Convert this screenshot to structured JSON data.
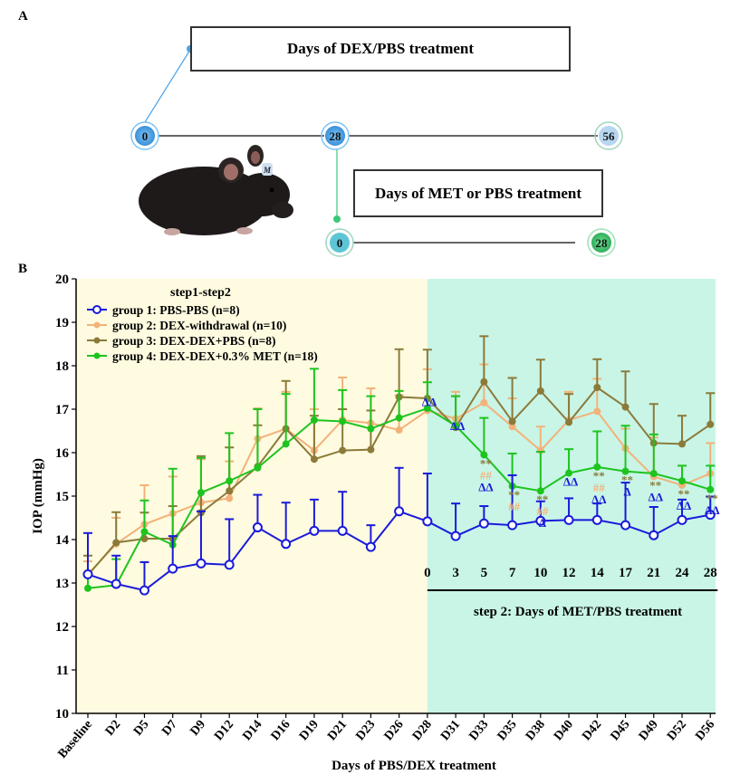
{
  "panel_a": {
    "letter": "A",
    "dex_box_label": "Days of DEX/PBS treatment",
    "met_box_label": "Days of MET or PBS treatment",
    "timeline1_nodes": [
      "0",
      "28",
      "56"
    ],
    "timeline2_nodes": [
      "0",
      "28"
    ],
    "mouse_tag": "M"
  },
  "panel_b": {
    "letter": "B",
    "step2_label": "step 2: Days of MET/PBS treatment",
    "step2_days": [
      "0",
      "3",
      "5",
      "7",
      "10",
      "12",
      "14",
      "17",
      "21",
      "24",
      "28"
    ]
  },
  "colors": {
    "g1": "#1a1adb",
    "g2": "#f2b27a",
    "g3": "#8b7a3a",
    "g4": "#1ec41e",
    "bg_step1": "#fffbe0",
    "bg_step2": "#c8f5e6",
    "node_blue": "#4aa3e8",
    "node_green": "#3cc87a"
  },
  "chart_data": {
    "type": "line",
    "legend_title": "step1-step2",
    "legend_position": "top-left",
    "xlabel": "Days of PBS/DEX treatment",
    "ylabel": "IOP (mmHg)",
    "ylim": [
      10,
      20
    ],
    "yticks": [
      10,
      11,
      12,
      13,
      14,
      15,
      16,
      17,
      18,
      19,
      20
    ],
    "categories": [
      "Baseline",
      "D2",
      "D5",
      "D7",
      "D9",
      "D12",
      "D14",
      "D16",
      "D19",
      "D21",
      "D23",
      "D26",
      "D28",
      "D31",
      "D33",
      "D35",
      "D38",
      "D40",
      "D42",
      "D45",
      "D49",
      "D52",
      "D56"
    ],
    "series": [
      {
        "name": "group 1: PBS-PBS (n=8)",
        "color": "#1a1adb",
        "marker": "open-circle",
        "values": [
          13.2,
          12.98,
          12.83,
          13.33,
          13.45,
          13.42,
          14.28,
          13.9,
          14.2,
          14.2,
          13.83,
          14.65,
          14.42,
          14.08,
          14.37,
          14.33,
          14.43,
          14.45,
          14.45,
          14.33,
          14.1,
          14.45,
          14.57
        ],
        "errors": [
          0.95,
          0.65,
          0.65,
          0.75,
          1.2,
          1.05,
          0.75,
          0.95,
          0.72,
          0.9,
          0.5,
          1.0,
          1.1,
          0.75,
          0.4,
          1.15,
          0.45,
          0.5,
          0.38,
          0.98,
          0.65,
          0.47,
          0.42
        ]
      },
      {
        "name": "group 2: DEX-withdrawal (n=10)",
        "color": "#f2b27a",
        "marker": "circle",
        "values": [
          13.2,
          13.9,
          14.35,
          14.6,
          14.85,
          14.95,
          16.32,
          16.55,
          16.05,
          16.75,
          16.68,
          16.52,
          16.97,
          16.78,
          17.15,
          16.6,
          16.05,
          16.75,
          16.95,
          16.1,
          15.45,
          15.25,
          15.52
        ],
        "errors": [
          0.3,
          0.6,
          0.9,
          0.85,
          1.0,
          0.85,
          0.7,
          0.85,
          0.95,
          0.98,
          0.8,
          0.8,
          0.95,
          0.62,
          0.88,
          0.65,
          0.55,
          0.65,
          0.75,
          0.45,
          0.9,
          0.45,
          0.7
        ]
      },
      {
        "name": "group 3: DEX-DEX+PBS (n=8)",
        "color": "#8b7a3a",
        "marker": "circle",
        "values": [
          13.18,
          13.93,
          14.02,
          14.02,
          14.62,
          15.12,
          15.68,
          16.55,
          15.85,
          16.05,
          16.07,
          17.28,
          17.25,
          16.58,
          17.63,
          16.72,
          17.42,
          16.7,
          17.5,
          17.05,
          16.22,
          16.2,
          16.65
        ],
        "errors": [
          0.45,
          0.7,
          0.6,
          0.75,
          1.3,
          1.0,
          0.95,
          1.1,
          1.0,
          0.95,
          0.9,
          1.1,
          1.12,
          0.72,
          1.05,
          1.0,
          0.72,
          0.65,
          0.65,
          0.82,
          0.9,
          0.65,
          0.72
        ]
      },
      {
        "name": "group 4: DEX-DEX+0.3% MET (n=18)",
        "color": "#1ec41e",
        "marker": "circle",
        "values": [
          12.88,
          12.95,
          14.18,
          13.88,
          15.08,
          15.35,
          15.65,
          16.2,
          16.75,
          16.72,
          16.55,
          16.8,
          17.02,
          16.62,
          15.95,
          15.23,
          15.12,
          15.53,
          15.67,
          15.57,
          15.52,
          15.35,
          15.15
        ],
        "errors": [
          0.35,
          0.6,
          0.72,
          1.75,
          0.8,
          1.1,
          1.35,
          1.15,
          1.18,
          0.72,
          0.75,
          0.62,
          0.6,
          0.68,
          0.85,
          0.75,
          0.9,
          0.55,
          0.82,
          1.05,
          0.9,
          0.35,
          0.55
        ]
      }
    ],
    "annotations": [
      {
        "category": "D28",
        "lines": [
          "ΔΔ"
        ],
        "colors": [
          "g1"
        ]
      },
      {
        "category": "D31",
        "lines": [
          "ΔΔ"
        ],
        "colors": [
          "g1"
        ]
      },
      {
        "category": "D33",
        "lines": [
          "**",
          "##",
          "ΔΔ"
        ],
        "colors": [
          "g3",
          "g2",
          "g1"
        ]
      },
      {
        "category": "D35",
        "lines": [
          "**",
          "##"
        ],
        "colors": [
          "g3",
          "g2"
        ]
      },
      {
        "category": "D38",
        "lines": [
          "**",
          "##",
          "Δ"
        ],
        "colors": [
          "g3",
          "g2",
          "g1"
        ]
      },
      {
        "category": "D40",
        "lines": [
          "ΔΔ"
        ],
        "colors": [
          "g1"
        ]
      },
      {
        "category": "D42",
        "lines": [
          "**",
          "##",
          "ΔΔ"
        ],
        "colors": [
          "g3",
          "g2",
          "g1"
        ]
      },
      {
        "category": "D45",
        "lines": [
          "**",
          "Δ"
        ],
        "colors": [
          "g3",
          "g1"
        ]
      },
      {
        "category": "D49",
        "lines": [
          "**",
          "ΔΔ"
        ],
        "colors": [
          "g3",
          "g1"
        ]
      },
      {
        "category": "D52",
        "lines": [
          "**",
          "ΔΔ"
        ],
        "colors": [
          "g3",
          "g1"
        ]
      },
      {
        "category": "D56",
        "lines": [
          "**",
          "ΔΔ"
        ],
        "colors": [
          "g3",
          "g1"
        ]
      }
    ]
  }
}
